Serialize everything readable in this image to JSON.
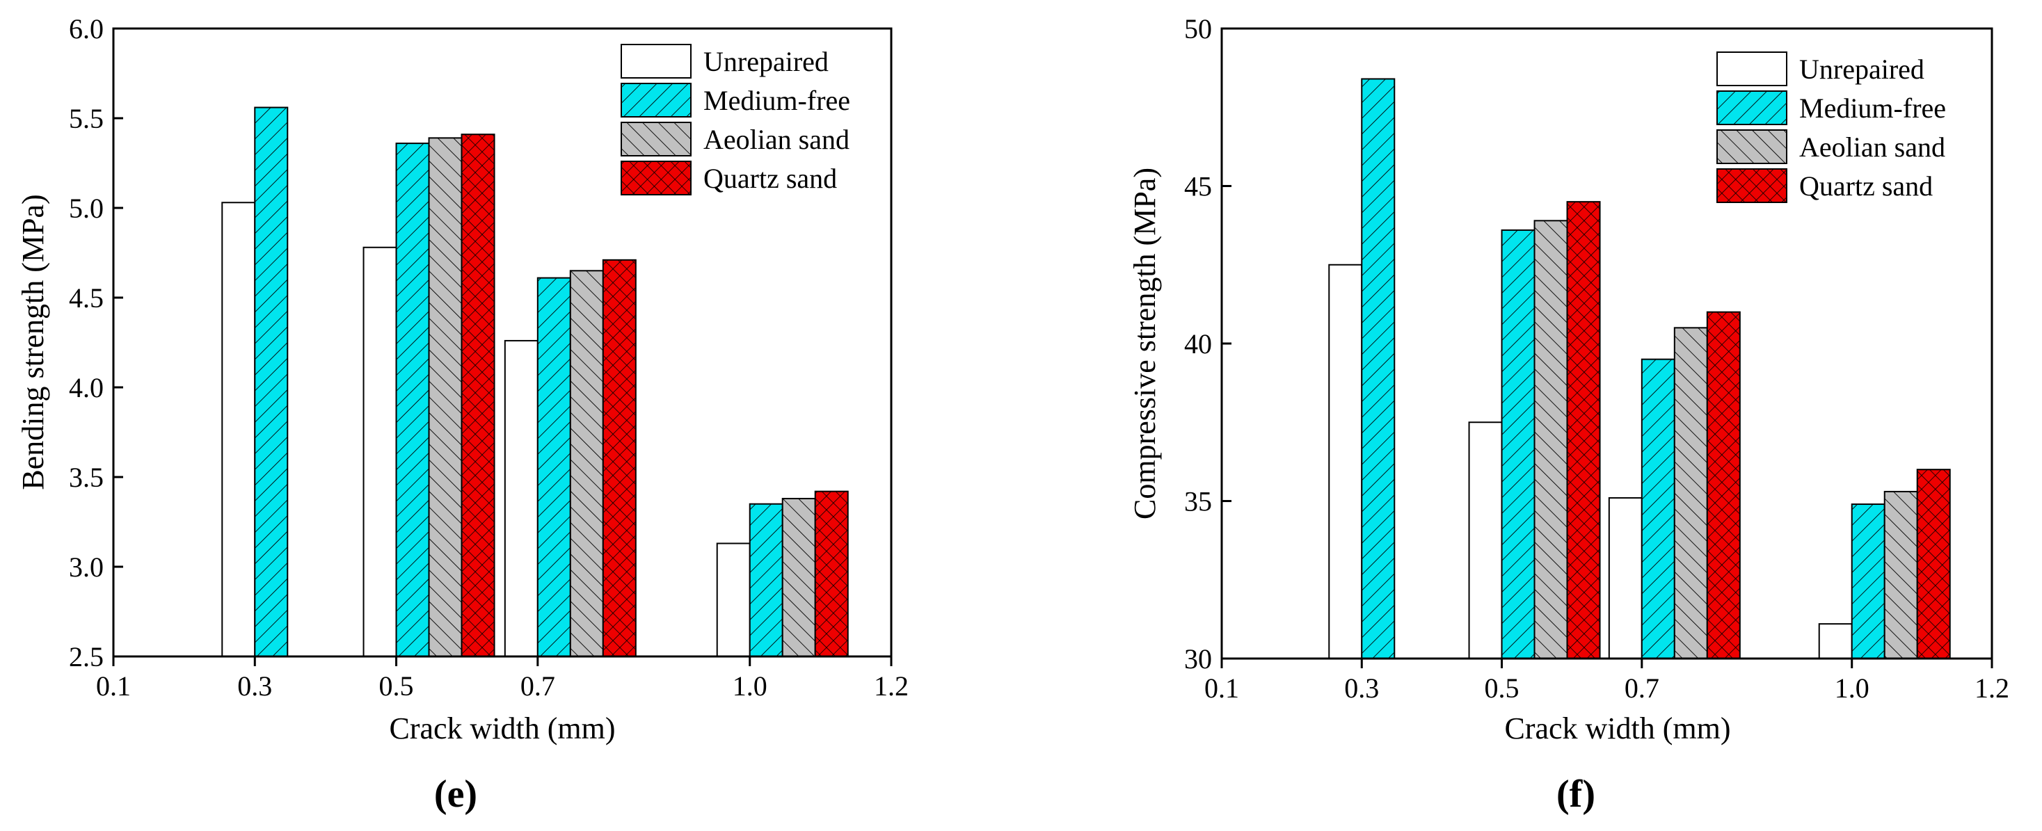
{
  "colors": {
    "unrepaired": "#ffffff",
    "medium_free": "#00e5ee",
    "aeolian_sand": "#c0c0c0",
    "quartz_sand": "#ee0000"
  },
  "legend": {
    "placement": "top-right",
    "entries": [
      "Unrepaired",
      "Medium-free",
      "Aeolian sand",
      "Quartz sand"
    ]
  },
  "chart_data": [
    {
      "type": "bar",
      "panel_label": "(e)",
      "xlabel": "Crack width (mm)",
      "ylabel": "Bending strength (MPa)",
      "xlim": [
        0.1,
        1.2
      ],
      "ylim": [
        2.5,
        6.0
      ],
      "xticks": [
        "0.1",
        "0.3",
        "0.5",
        "0.7",
        "1.0",
        "1.2"
      ],
      "yticks": [
        "2.5",
        "3.0",
        "3.5",
        "4.0",
        "4.5",
        "5.0",
        "5.5",
        "6.0"
      ],
      "categories": [
        "0.3",
        "0.5",
        "0.7",
        "1.0"
      ],
      "series": [
        {
          "name": "Unrepaired",
          "values": [
            5.03,
            4.78,
            4.26,
            3.13
          ]
        },
        {
          "name": "Medium-free",
          "values": [
            5.56,
            5.36,
            4.61,
            3.35
          ]
        },
        {
          "name": "Aeolian sand",
          "values": [
            null,
            5.39,
            4.65,
            3.38
          ]
        },
        {
          "name": "Quartz sand",
          "values": [
            null,
            5.41,
            4.71,
            3.42
          ]
        }
      ]
    },
    {
      "type": "bar",
      "panel_label": "(f)",
      "xlabel": "Crack width (mm)",
      "ylabel": "Compressive strength (MPa)",
      "xlim": [
        0.1,
        1.2
      ],
      "ylim": [
        30,
        50
      ],
      "xticks": [
        "0.1",
        "0.3",
        "0.5",
        "0.7",
        "1.0",
        "1.2"
      ],
      "yticks": [
        "30",
        "35",
        "40",
        "45",
        "50"
      ],
      "categories": [
        "0.3",
        "0.5",
        "0.7",
        "1.0"
      ],
      "series": [
        {
          "name": "Unrepaired",
          "values": [
            42.5,
            37.5,
            35.1,
            31.1
          ]
        },
        {
          "name": "Medium-free",
          "values": [
            48.4,
            43.6,
            39.5,
            34.9
          ]
        },
        {
          "name": "Aeolian sand",
          "values": [
            null,
            43.9,
            40.5,
            35.3
          ]
        },
        {
          "name": "Quartz sand",
          "values": [
            null,
            44.5,
            41.0,
            36.0
          ]
        }
      ]
    }
  ]
}
